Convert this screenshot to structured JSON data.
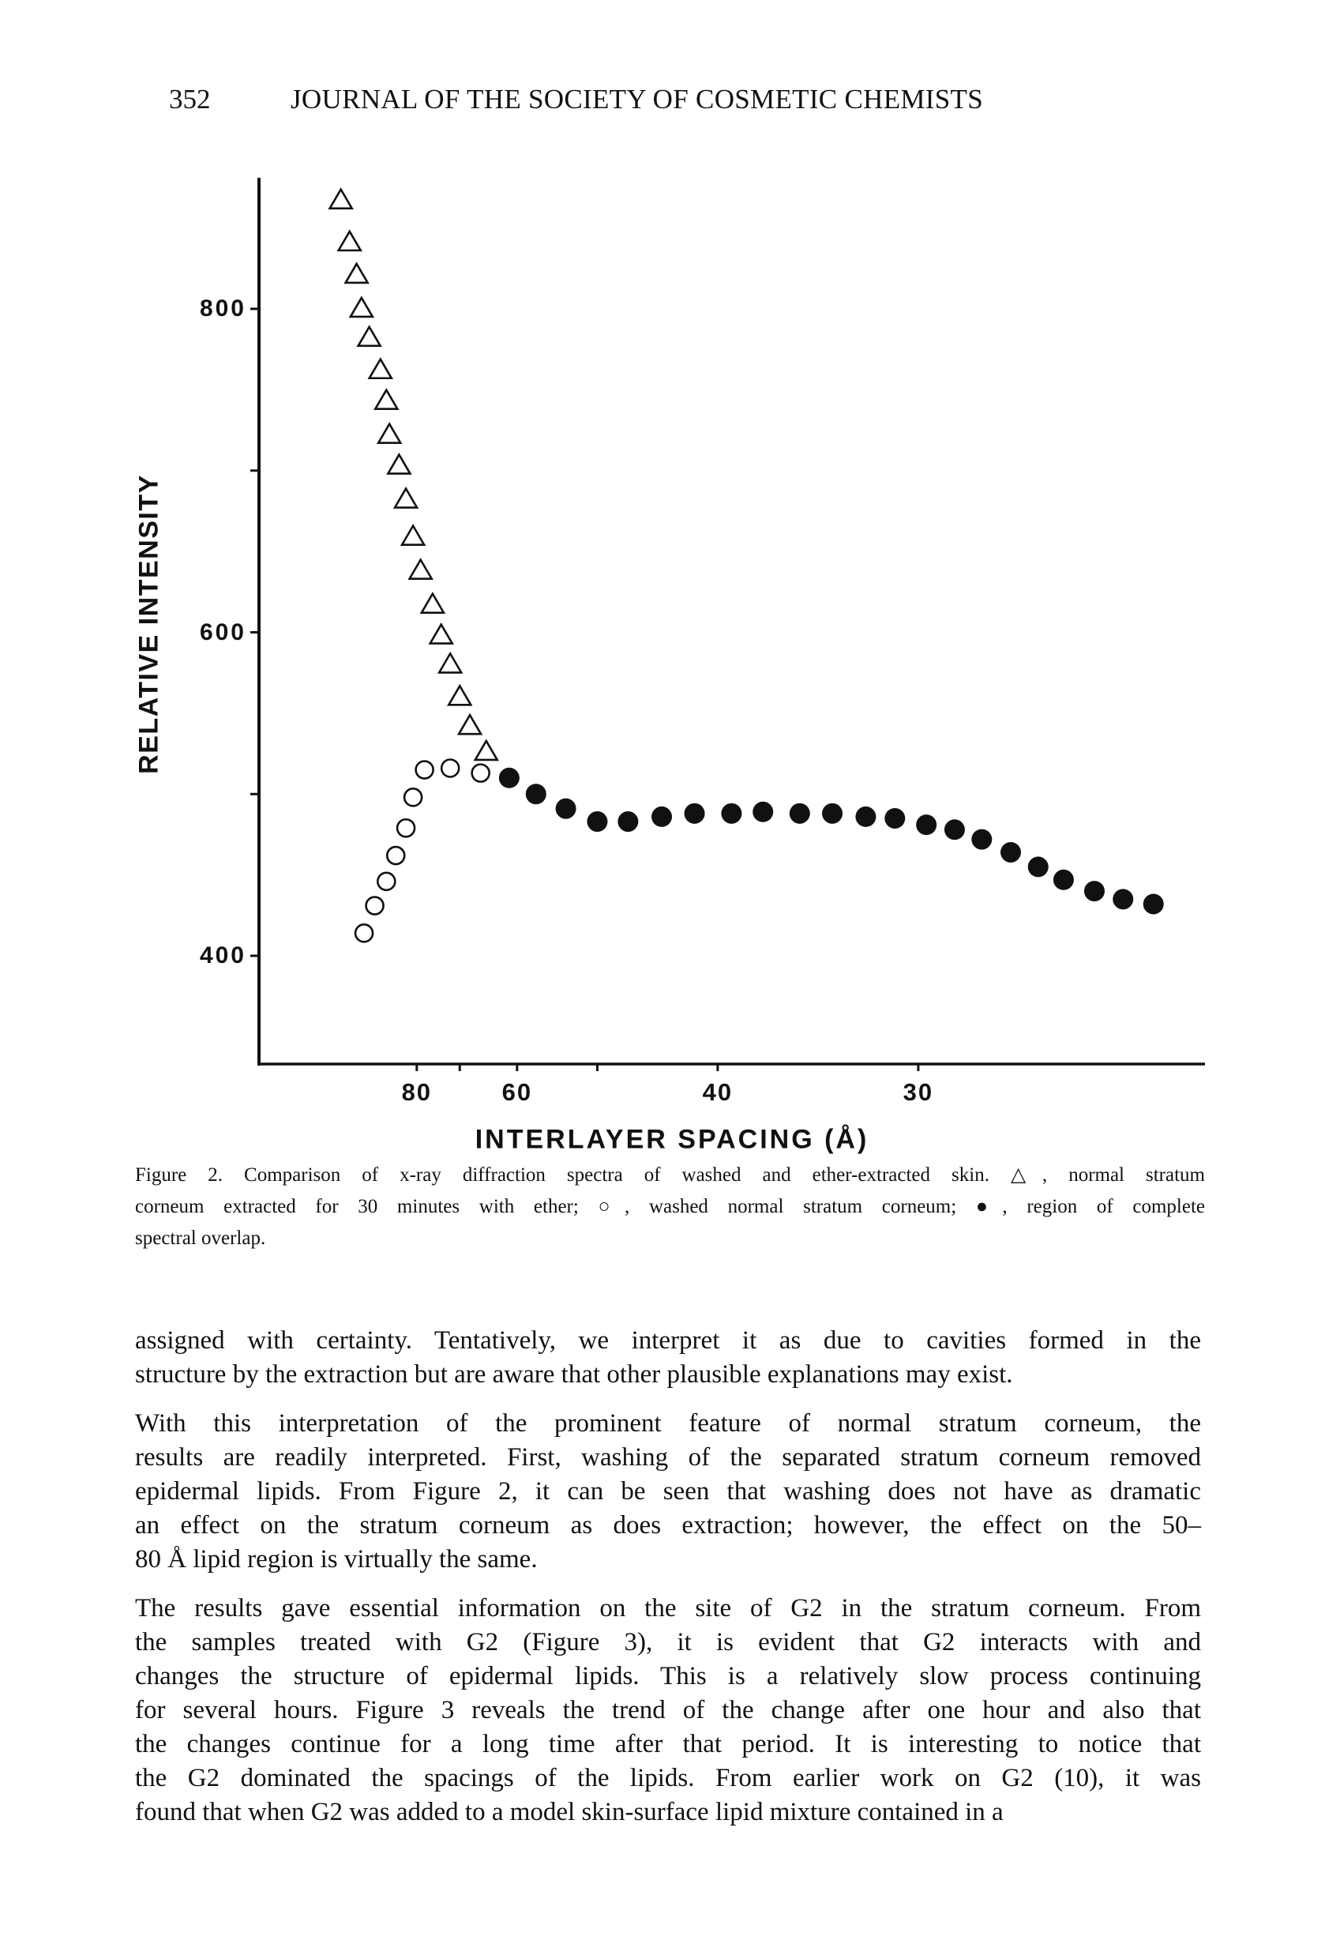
{
  "header": {
    "page_number": "352",
    "running_head": "JOURNAL OF THE SOCIETY OF COSMETIC CHEMISTS"
  },
  "chart_data": {
    "type": "scatter",
    "title": "",
    "xlabel": "INTERLAYER SPACING  (Å)",
    "ylabel": "RELATIVE INTENSITY",
    "x_scale": "reciprocal (spacing decreases to the right)",
    "x_ticks": [
      80,
      70,
      60,
      50,
      40,
      30
    ],
    "x_tick_labels": [
      "80",
      "60",
      "40",
      "30"
    ],
    "x_tick_label_values": [
      80,
      60,
      40,
      30
    ],
    "y_ticks": [
      800,
      700,
      600,
      500,
      400
    ],
    "y_tick_labels": [
      "800",
      "600",
      "400"
    ],
    "y_tick_label_values": [
      800,
      600,
      400
    ],
    "ylim": [
      334,
      881
    ],
    "grid": false,
    "series": [
      {
        "name": "normal stratum corneum extracted for 30 minutes with ether",
        "marker": "open-triangle",
        "points": [
          [
            107,
            868
          ],
          [
            103,
            842
          ],
          [
            100,
            822
          ],
          [
            98,
            801
          ],
          [
            95,
            783
          ],
          [
            91,
            763
          ],
          [
            89,
            744
          ],
          [
            88,
            723
          ],
          [
            85,
            704
          ],
          [
            83,
            683
          ],
          [
            81,
            660
          ],
          [
            79,
            639
          ],
          [
            76,
            618
          ],
          [
            74,
            599
          ],
          [
            72,
            581
          ],
          [
            70,
            561
          ],
          [
            68,
            543
          ],
          [
            65,
            527
          ]
        ]
      },
      {
        "name": "washed normal stratum corneum",
        "marker": "open-circle",
        "points": [
          [
            97,
            414
          ],
          [
            93,
            431
          ],
          [
            89,
            446
          ],
          [
            86,
            462
          ],
          [
            83,
            479
          ],
          [
            81,
            498
          ],
          [
            78,
            515
          ],
          [
            72,
            516
          ],
          [
            66,
            513
          ]
        ]
      },
      {
        "name": "region of complete spectral overlap",
        "marker": "filled-circle",
        "points": [
          [
            61.2,
            510
          ],
          [
            57.3,
            500
          ],
          [
            53.5,
            491
          ],
          [
            50,
            483
          ],
          [
            47,
            483
          ],
          [
            44.1,
            486
          ],
          [
            41.6,
            488
          ],
          [
            39.1,
            488
          ],
          [
            37.2,
            489
          ],
          [
            35.2,
            488
          ],
          [
            33.6,
            488
          ],
          [
            32.1,
            486
          ],
          [
            30.9,
            485
          ],
          [
            29.7,
            481
          ],
          [
            28.7,
            478
          ],
          [
            27.8,
            472
          ],
          [
            26.9,
            464
          ],
          [
            26.1,
            455
          ],
          [
            25.4,
            447
          ],
          [
            24.6,
            440
          ],
          [
            23.9,
            435
          ],
          [
            23.2,
            432
          ]
        ]
      }
    ]
  },
  "caption": {
    "lines": [
      "Figure 2.  Comparison of x-ray diffraction spectra of washed and ether-extracted skin. △, normal stratum",
      "corneum extracted for 30 minutes with ether; ○, washed normal stratum corneum; ●, region of complete",
      "spectral overlap."
    ]
  },
  "body": {
    "paragraphs": [
      [
        "assigned with certainty. Tentatively, we interpret it as due to cavities formed in the",
        "structure by the extraction but are aware that other plausible explanations may exist."
      ],
      [
        "With this interpretation of the prominent feature of normal stratum corneum, the",
        "results are readily interpreted. First, washing of the separated stratum corneum removed",
        "epidermal lipids. From Figure 2, it can be seen that washing does not have as dramatic",
        "an effect on the stratum corneum as does extraction; however, the effect on the 50–",
        "80 Å lipid region is virtually the same."
      ],
      [
        "The results gave essential information on the site of G2 in the stratum corneum. From",
        "the samples treated with G2 (Figure 3), it is evident that G2 interacts with and",
        "changes the structure of epidermal lipids. This is a relatively slow process continuing",
        "for several hours. Figure 3 reveals the trend of the change after one hour and also that",
        "the changes continue for a long time after that period. It is interesting to notice that",
        "the G2 dominated the spacings of the lipids. From earlier work on G2 (10), it was",
        "found that when G2 was added to a model skin-surface lipid mixture contained in a"
      ]
    ]
  }
}
